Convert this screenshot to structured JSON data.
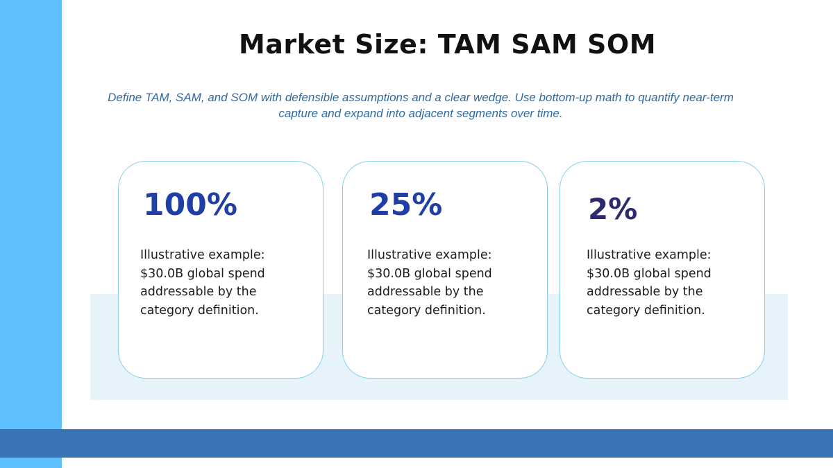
{
  "slide": {
    "title": "Market Size: TAM SAM SOM",
    "subtitle": "Define TAM, SAM, and SOM with defensible assumptions and a clear wedge. Use bottom-up math to quantify near-term capture and expand into adjacent segments over time."
  },
  "cards": [
    {
      "value": "100%",
      "description": "Illustrative example: $30.0B global spend addressable by the category definition.",
      "value_color": "#1f3ea6"
    },
    {
      "value": "25%",
      "description": "Illustrative example: $30.0B global spend addressable by the category definition.",
      "value_color": "#1f3ea6"
    },
    {
      "value": "2%",
      "description": "Illustrative example: $30.0B global spend addressable by the category definition.",
      "value_color": "#2e2a6e"
    }
  ],
  "colors": {
    "left_bar": "#5fc0fd",
    "bottom_bar": "#3b74b5",
    "band": "#e6f3fa",
    "card_border": "#86cfee",
    "subtitle": "#2f6ba2"
  }
}
